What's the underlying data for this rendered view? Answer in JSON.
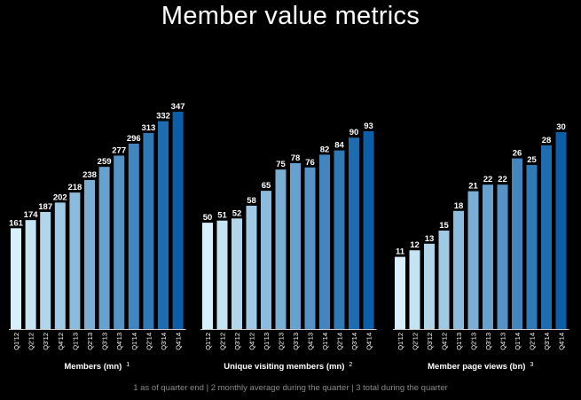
{
  "title": "Member value metrics",
  "footnote": "1 as of quarter end | 2 monthly average during the quarter | 3 total during the quarter",
  "colors": {
    "background": "#000000",
    "text": "#ffffff",
    "footnote": "#8a8a8a",
    "axis": "#cccccc",
    "bar_start": "#d6f1fb",
    "bar_end": "#0b5ea8"
  },
  "chart_data": [
    {
      "type": "bar",
      "title": "",
      "xlabel": "Members (mn)",
      "xlabel_note": "1",
      "ylabel": "",
      "ylim": [
        0,
        347
      ],
      "categories": [
        "Q1'12",
        "Q2'12",
        "Q3'12",
        "Q4'12",
        "Q1'13",
        "Q2'13",
        "Q3'13",
        "Q4'13",
        "Q1'14",
        "Q2'14",
        "Q3'14",
        "Q4'14"
      ],
      "values": [
        161,
        174,
        187,
        202,
        218,
        238,
        259,
        277,
        296,
        313,
        332,
        347
      ],
      "grid": false,
      "legend": "none"
    },
    {
      "type": "bar",
      "title": "",
      "xlabel": "Unique visiting members (mn)",
      "xlabel_note": "2",
      "ylabel": "",
      "ylim": [
        0,
        93
      ],
      "categories": [
        "Q1'12",
        "Q2'12",
        "Q3'12",
        "Q4'12",
        "Q1'13",
        "Q2'13",
        "Q3'13",
        "Q4'13",
        "Q1'14",
        "Q2'14",
        "Q3'14",
        "Q4'14"
      ],
      "values": [
        50,
        51,
        52,
        58,
        65,
        75,
        78,
        76,
        82,
        84,
        90,
        93
      ],
      "grid": false,
      "legend": "none"
    },
    {
      "type": "bar",
      "title": "",
      "xlabel": "Member page views (bn)",
      "xlabel_note": "3",
      "ylabel": "",
      "ylim": [
        0,
        30
      ],
      "categories": [
        "Q1'12",
        "Q2'12",
        "Q3'12",
        "Q4'12",
        "Q1'13",
        "Q2'13",
        "Q3'13",
        "Q4'13",
        "Q1'14",
        "Q2'14",
        "Q3'14",
        "Q4'14"
      ],
      "values": [
        11,
        12,
        13,
        15,
        18,
        21,
        22,
        22,
        26,
        25,
        28,
        30
      ],
      "grid": false,
      "legend": "none"
    }
  ]
}
